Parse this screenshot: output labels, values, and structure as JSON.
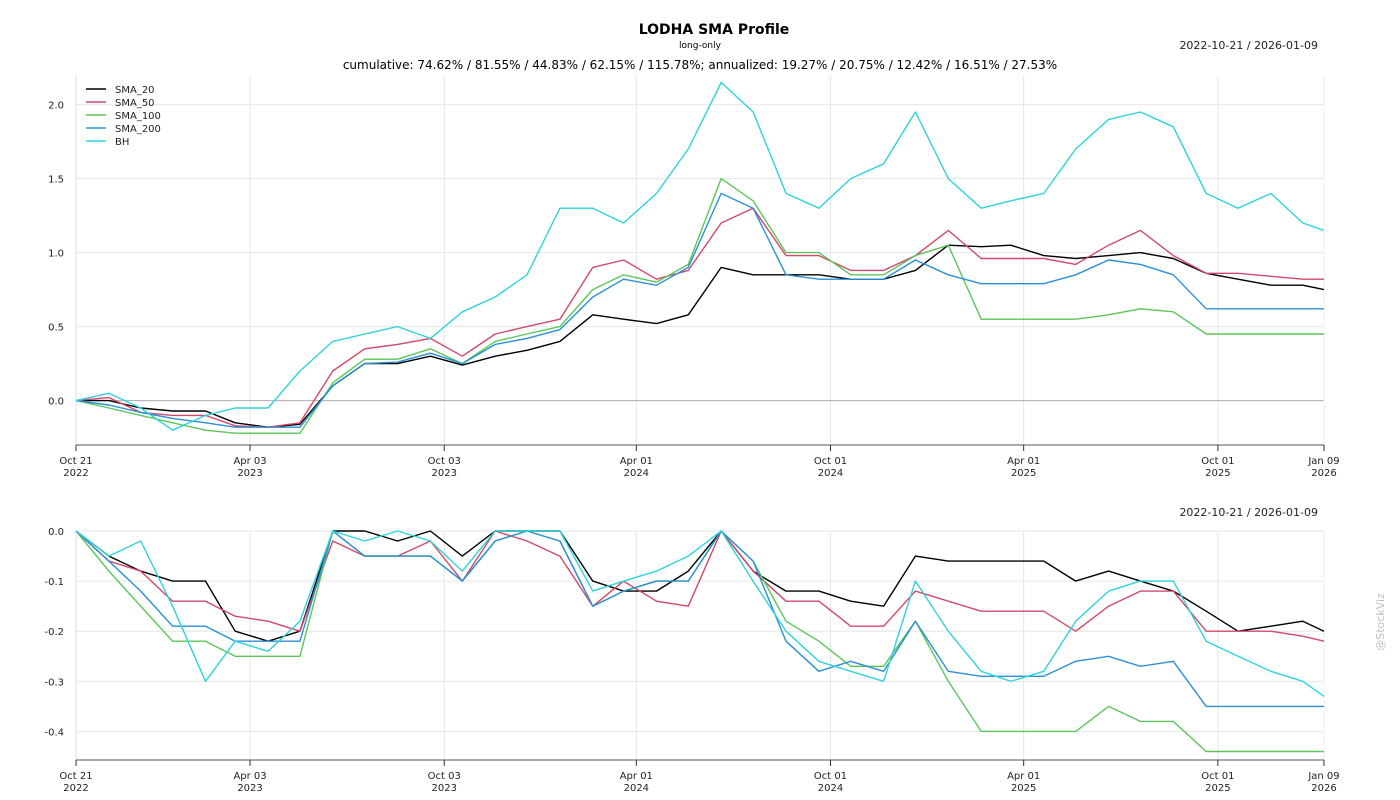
{
  "header": {
    "title": "LODHA SMA Profile",
    "subtitle": "long-only",
    "date_range": "2022-10-21 / 2026-01-09",
    "stats": "cumulative: 74.62% / 81.55% / 44.83% / 62.15% / 115.78%; annualized: 19.27% / 20.75% / 12.42% / 16.51% / 27.53%"
  },
  "watermark": "@StockViz",
  "chart_data": [
    {
      "type": "line",
      "title": "LODHA SMA Profile",
      "ylim": [
        -0.3,
        2.2
      ],
      "yticks": [
        0.0,
        0.5,
        1.0,
        1.5,
        2.0
      ],
      "ytick_labels": [
        "0.0",
        "0.5",
        "1.0",
        "1.5",
        "2.0"
      ],
      "grid": true,
      "legend_placement": "top-left",
      "x": [
        "2022-10-21",
        "2022-11-21",
        "2022-12-21",
        "2023-01-20",
        "2023-02-20",
        "2023-03-20",
        "2023-04-20",
        "2023-05-20",
        "2023-06-20",
        "2023-07-20",
        "2023-08-20",
        "2023-09-20",
        "2023-10-20",
        "2023-11-20",
        "2023-12-20",
        "2024-01-20",
        "2024-02-20",
        "2024-03-20",
        "2024-04-20",
        "2024-05-20",
        "2024-06-20",
        "2024-07-20",
        "2024-08-20",
        "2024-09-20",
        "2024-10-20",
        "2024-11-20",
        "2024-12-20",
        "2025-01-20",
        "2025-02-20",
        "2025-03-20",
        "2025-04-20",
        "2025-05-20",
        "2025-06-20",
        "2025-07-20",
        "2025-08-20",
        "2025-09-20",
        "2025-10-20",
        "2025-11-20",
        "2025-12-20",
        "2026-01-09"
      ],
      "series": [
        {
          "name": "SMA_20",
          "color": "#000000",
          "values": [
            0.0,
            0.0,
            -0.05,
            -0.07,
            -0.07,
            -0.15,
            -0.18,
            -0.16,
            0.1,
            0.25,
            0.25,
            0.3,
            0.24,
            0.3,
            0.34,
            0.4,
            0.58,
            0.55,
            0.52,
            0.58,
            0.9,
            0.85,
            0.85,
            0.85,
            0.82,
            0.82,
            0.88,
            1.05,
            1.04,
            1.05,
            0.98,
            0.96,
            0.98,
            1.0,
            0.96,
            0.86,
            0.82,
            0.78,
            0.78,
            0.75
          ]
        },
        {
          "name": "SMA_50",
          "color": "#d1496a",
          "values": [
            0.0,
            0.02,
            -0.08,
            -0.1,
            -0.1,
            -0.17,
            -0.18,
            -0.15,
            0.2,
            0.35,
            0.38,
            0.42,
            0.3,
            0.45,
            0.5,
            0.55,
            0.9,
            0.95,
            0.82,
            0.88,
            1.2,
            1.3,
            0.98,
            0.98,
            0.88,
            0.88,
            0.98,
            1.15,
            0.96,
            0.96,
            0.96,
            0.92,
            1.05,
            1.15,
            0.98,
            0.86,
            0.86,
            0.84,
            0.82,
            0.82
          ]
        },
        {
          "name": "SMA_100",
          "color": "#5bc65b",
          "values": [
            0.0,
            -0.05,
            -0.1,
            -0.15,
            -0.2,
            -0.22,
            -0.22,
            -0.22,
            0.12,
            0.28,
            0.28,
            0.35,
            0.25,
            0.4,
            0.45,
            0.5,
            0.75,
            0.85,
            0.8,
            0.92,
            1.5,
            1.35,
            1.0,
            1.0,
            0.85,
            0.85,
            0.98,
            1.05,
            0.55,
            0.55,
            0.55,
            0.55,
            0.58,
            0.62,
            0.6,
            0.45,
            0.45,
            0.45,
            0.45,
            0.45
          ]
        },
        {
          "name": "SMA_200",
          "color": "#2c8fd6",
          "values": [
            0.0,
            -0.03,
            -0.08,
            -0.12,
            -0.15,
            -0.18,
            -0.18,
            -0.18,
            0.1,
            0.25,
            0.26,
            0.32,
            0.25,
            0.38,
            0.42,
            0.48,
            0.7,
            0.82,
            0.78,
            0.9,
            1.4,
            1.3,
            0.85,
            0.82,
            0.82,
            0.82,
            0.95,
            0.85,
            0.79,
            0.79,
            0.79,
            0.85,
            0.95,
            0.92,
            0.85,
            0.62,
            0.62,
            0.62,
            0.62,
            0.62
          ]
        },
        {
          "name": "BH",
          "color": "#2ed3db",
          "values": [
            0.0,
            0.05,
            -0.05,
            -0.2,
            -0.1,
            -0.05,
            -0.05,
            0.2,
            0.4,
            0.45,
            0.5,
            0.42,
            0.6,
            0.7,
            0.85,
            1.3,
            1.3,
            1.2,
            1.4,
            1.7,
            2.15,
            1.95,
            1.4,
            1.3,
            1.5,
            1.6,
            1.95,
            1.5,
            1.3,
            1.35,
            1.4,
            1.7,
            1.9,
            1.95,
            1.85,
            1.4,
            1.3,
            1.4,
            1.2,
            1.15
          ]
        }
      ]
    },
    {
      "type": "line",
      "title": "",
      "ylim": [
        -0.45,
        0.0
      ],
      "yticks": [
        0.0,
        -0.1,
        -0.2,
        -0.3,
        -0.4
      ],
      "ytick_labels": [
        "0.0",
        "-0.1",
        "-0.2",
        "-0.3",
        "-0.4"
      ],
      "grid": true,
      "x": [
        "2022-10-21",
        "2022-11-21",
        "2022-12-21",
        "2023-01-20",
        "2023-02-20",
        "2023-03-20",
        "2023-04-20",
        "2023-05-20",
        "2023-06-20",
        "2023-07-20",
        "2023-08-20",
        "2023-09-20",
        "2023-10-20",
        "2023-11-20",
        "2023-12-20",
        "2024-01-20",
        "2024-02-20",
        "2024-03-20",
        "2024-04-20",
        "2024-05-20",
        "2024-06-20",
        "2024-07-20",
        "2024-08-20",
        "2024-09-20",
        "2024-10-20",
        "2024-11-20",
        "2024-12-20",
        "2025-01-20",
        "2025-02-20",
        "2025-03-20",
        "2025-04-20",
        "2025-05-20",
        "2025-06-20",
        "2025-07-20",
        "2025-08-20",
        "2025-09-20",
        "2025-10-20",
        "2025-11-20",
        "2025-12-20",
        "2026-01-09"
      ],
      "series": [
        {
          "name": "SMA_20",
          "color": "#000000",
          "values": [
            0.0,
            -0.05,
            -0.08,
            -0.1,
            -0.1,
            -0.2,
            -0.22,
            -0.2,
            0.0,
            0.0,
            -0.02,
            0.0,
            -0.05,
            0.0,
            0.0,
            0.0,
            -0.1,
            -0.12,
            -0.12,
            -0.08,
            0.0,
            -0.08,
            -0.12,
            -0.12,
            -0.14,
            -0.15,
            -0.05,
            -0.06,
            -0.06,
            -0.06,
            -0.06,
            -0.1,
            -0.08,
            -0.1,
            -0.12,
            -0.16,
            -0.2,
            -0.19,
            -0.18,
            -0.2
          ]
        },
        {
          "name": "SMA_50",
          "color": "#d1496a",
          "values": [
            0.0,
            -0.06,
            -0.08,
            -0.14,
            -0.14,
            -0.17,
            -0.18,
            -0.2,
            -0.02,
            -0.05,
            -0.05,
            -0.02,
            -0.1,
            0.0,
            -0.02,
            -0.05,
            -0.15,
            -0.1,
            -0.14,
            -0.15,
            0.0,
            -0.08,
            -0.14,
            -0.14,
            -0.19,
            -0.19,
            -0.12,
            -0.14,
            -0.16,
            -0.16,
            -0.16,
            -0.2,
            -0.15,
            -0.12,
            -0.12,
            -0.2,
            -0.2,
            -0.2,
            -0.21,
            -0.22
          ]
        },
        {
          "name": "SMA_100",
          "color": "#5bc65b",
          "values": [
            0.0,
            -0.08,
            -0.15,
            -0.22,
            -0.22,
            -0.25,
            -0.25,
            -0.25,
            0.0,
            -0.05,
            -0.05,
            -0.05,
            -0.1,
            -0.02,
            0.0,
            -0.02,
            -0.15,
            -0.12,
            -0.1,
            -0.1,
            0.0,
            -0.06,
            -0.18,
            -0.22,
            -0.27,
            -0.27,
            -0.18,
            -0.3,
            -0.4,
            -0.4,
            -0.4,
            -0.4,
            -0.35,
            -0.38,
            -0.38,
            -0.44,
            -0.44,
            -0.44,
            -0.44,
            -0.44
          ]
        },
        {
          "name": "SMA_200",
          "color": "#2c8fd6",
          "values": [
            0.0,
            -0.06,
            -0.12,
            -0.19,
            -0.19,
            -0.22,
            -0.22,
            -0.22,
            0.0,
            -0.05,
            -0.05,
            -0.05,
            -0.1,
            -0.02,
            0.0,
            -0.02,
            -0.15,
            -0.12,
            -0.1,
            -0.1,
            0.0,
            -0.06,
            -0.22,
            -0.28,
            -0.26,
            -0.28,
            -0.18,
            -0.28,
            -0.29,
            -0.29,
            -0.29,
            -0.26,
            -0.25,
            -0.27,
            -0.26,
            -0.35,
            -0.35,
            -0.35,
            -0.35,
            -0.35
          ]
        },
        {
          "name": "BH",
          "color": "#2ed3db",
          "values": [
            0.0,
            -0.05,
            -0.02,
            -0.15,
            -0.3,
            -0.22,
            -0.24,
            -0.18,
            0.0,
            -0.02,
            0.0,
            -0.02,
            -0.08,
            0.0,
            0.0,
            0.0,
            -0.12,
            -0.1,
            -0.08,
            -0.05,
            0.0,
            -0.1,
            -0.2,
            -0.26,
            -0.28,
            -0.3,
            -0.1,
            -0.2,
            -0.28,
            -0.3,
            -0.28,
            -0.18,
            -0.12,
            -0.1,
            -0.1,
            -0.22,
            -0.25,
            -0.28,
            -0.3,
            -0.33
          ]
        }
      ]
    }
  ],
  "x_axis": {
    "ticks": [
      {
        "date": "2022-10-21",
        "line1": "Oct 21",
        "line2": "2022"
      },
      {
        "date": "2023-04-03",
        "line1": "Apr 03",
        "line2": "2023"
      },
      {
        "date": "2023-10-03",
        "line1": "Oct 03",
        "line2": "2023"
      },
      {
        "date": "2024-04-01",
        "line1": "Apr 01",
        "line2": "2024"
      },
      {
        "date": "2024-10-01",
        "line1": "Oct 01",
        "line2": "2024"
      },
      {
        "date": "2025-04-01",
        "line1": "Apr 01",
        "line2": "2025"
      },
      {
        "date": "2025-10-01",
        "line1": "Oct 01",
        "line2": "2025"
      },
      {
        "date": "2026-01-09",
        "line1": "Jan 09",
        "line2": "2026"
      }
    ],
    "start": "2022-10-21",
    "end": "2026-01-09"
  }
}
